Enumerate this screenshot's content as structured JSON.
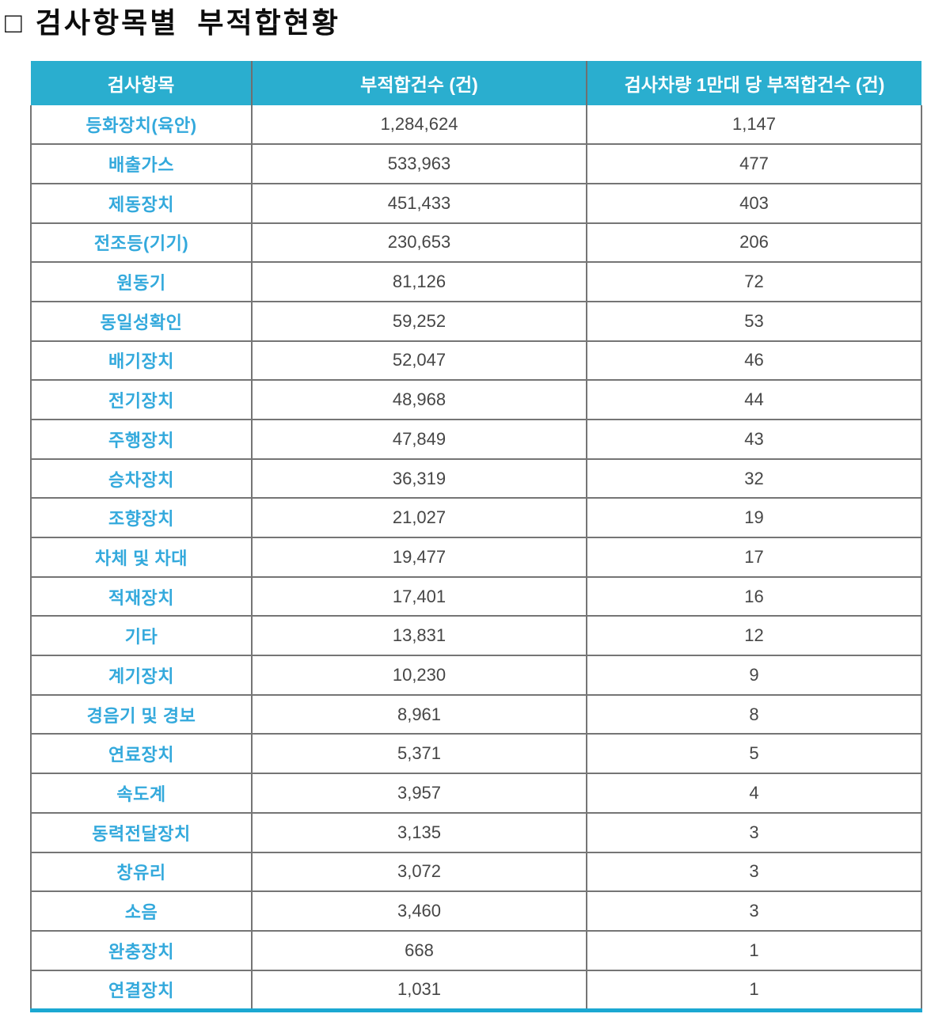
{
  "header": {
    "marker": "□",
    "title": "검사항목별  부적합현황"
  },
  "colors": {
    "table_header_bg": "#2aaecf",
    "table_header_text": "#ffffff",
    "item_label_text": "#33a9dc",
    "value_text": "#464646",
    "grid_line": "#757575",
    "bottom_rule": "#1ba8d2"
  },
  "table": {
    "columns": [
      "검사항목",
      "부적합건수 (건)",
      "검사차량 1만대 당 부적합건수 (건)"
    ],
    "rows": [
      {
        "item": "등화장치(육안)",
        "count": "1,284,624",
        "per_10k": "1,147"
      },
      {
        "item": "배출가스",
        "count": "533,963",
        "per_10k": "477"
      },
      {
        "item": "제동장치",
        "count": "451,433",
        "per_10k": "403"
      },
      {
        "item": "전조등(기기)",
        "count": "230,653",
        "per_10k": "206"
      },
      {
        "item": "원동기",
        "count": "81,126",
        "per_10k": "72"
      },
      {
        "item": "동일성확인",
        "count": "59,252",
        "per_10k": "53"
      },
      {
        "item": "배기장치",
        "count": "52,047",
        "per_10k": "46"
      },
      {
        "item": "전기장치",
        "count": "48,968",
        "per_10k": "44"
      },
      {
        "item": "주행장치",
        "count": "47,849",
        "per_10k": "43"
      },
      {
        "item": "승차장치",
        "count": "36,319",
        "per_10k": "32"
      },
      {
        "item": "조향장치",
        "count": "21,027",
        "per_10k": "19"
      },
      {
        "item": "차체 및 차대",
        "count": "19,477",
        "per_10k": "17"
      },
      {
        "item": "적재장치",
        "count": "17,401",
        "per_10k": "16"
      },
      {
        "item": "기타",
        "count": "13,831",
        "per_10k": "12"
      },
      {
        "item": "계기장치",
        "count": "10,230",
        "per_10k": "9"
      },
      {
        "item": "경음기 및 경보",
        "count": "8,961",
        "per_10k": "8"
      },
      {
        "item": "연료장치",
        "count": "5,371",
        "per_10k": "5"
      },
      {
        "item": "속도계",
        "count": "3,957",
        "per_10k": "4"
      },
      {
        "item": "동력전달장치",
        "count": "3,135",
        "per_10k": "3"
      },
      {
        "item": "창유리",
        "count": "3,072",
        "per_10k": "3"
      },
      {
        "item": "소음",
        "count": "3,460",
        "per_10k": "3"
      },
      {
        "item": "완충장치",
        "count": "668",
        "per_10k": "1"
      },
      {
        "item": "연결장치",
        "count": "1,031",
        "per_10k": "1"
      }
    ]
  }
}
